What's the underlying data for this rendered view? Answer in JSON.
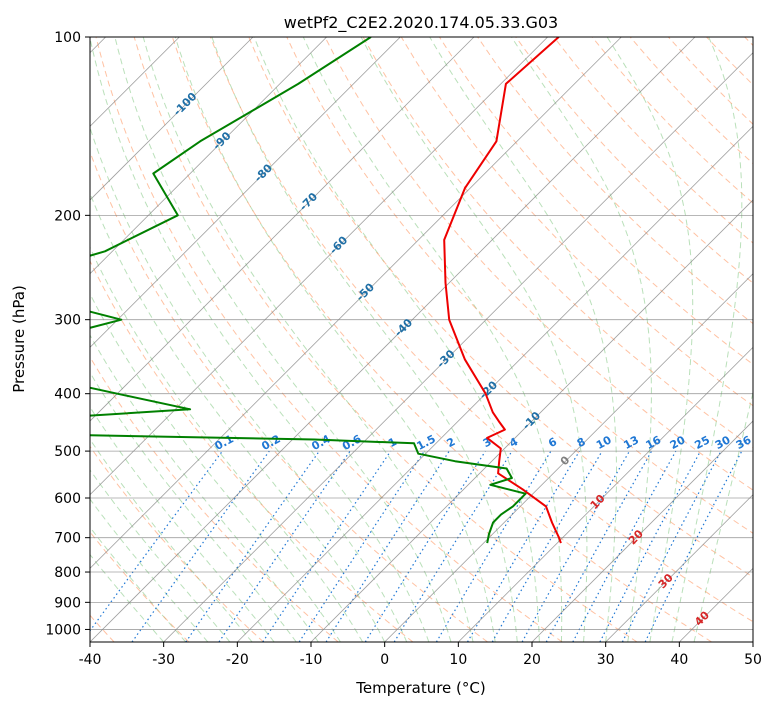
{
  "chart_data": {
    "type": "line",
    "title": "wetPf2_C2E2.2020.174.05.33.G03",
    "xlabel": "Temperature (°C)",
    "ylabel": "Pressure (hPa)",
    "xlim": [
      -40,
      50
    ],
    "ylim": [
      1050,
      100
    ],
    "y_scale": "log",
    "grid": true,
    "x_ticks": [
      -40,
      -30,
      -20,
      -10,
      0,
      10,
      20,
      30,
      40,
      50
    ],
    "y_ticks": [
      100,
      200,
      300,
      400,
      500,
      600,
      700,
      800,
      900,
      1000
    ],
    "series": [
      {
        "role": "temperature",
        "color": "#ee0000",
        "points": [
          [
            -58.5,
            100
          ],
          [
            -59.3,
            120
          ],
          [
            -52.8,
            150
          ],
          [
            -50.7,
            180
          ],
          [
            -46.5,
            220
          ],
          [
            -40.5,
            260
          ],
          [
            -35.0,
            300
          ],
          [
            -27.5,
            350
          ],
          [
            -20.0,
            400
          ],
          [
            -16.5,
            430
          ],
          [
            -14.5,
            445
          ],
          [
            -12.5,
            460
          ],
          [
            -13.8,
            475
          ],
          [
            -10.5,
            495
          ],
          [
            -9.0,
            520
          ],
          [
            -7.5,
            545
          ],
          [
            -2.0,
            580
          ],
          [
            3.5,
            620
          ],
          [
            6.5,
            660
          ],
          [
            9.5,
            700
          ],
          [
            10.5,
            715
          ]
        ]
      },
      {
        "role": "dewpoint",
        "color": "#008000",
        "points": [
          [
            -84.0,
            100
          ],
          [
            -87.5,
            120
          ],
          [
            -93.0,
            150
          ],
          [
            -95.0,
            170
          ],
          [
            -86.0,
            200
          ],
          [
            -91.0,
            230
          ],
          [
            -98.0,
            250
          ],
          [
            -97.5,
            270
          ],
          [
            -79.5,
            300
          ],
          [
            -89.0,
            330
          ],
          [
            -80.0,
            360
          ],
          [
            -80.0,
            380
          ],
          [
            -70.0,
            400
          ],
          [
            -58.0,
            425
          ],
          [
            -76.0,
            440
          ],
          [
            -68.5,
            470
          ],
          [
            -37.0,
            478
          ],
          [
            -23.0,
            485
          ],
          [
            -21.0,
            505
          ],
          [
            -15.0,
            520
          ],
          [
            -7.0,
            535
          ],
          [
            -5.0,
            555
          ],
          [
            -7.0,
            570
          ],
          [
            -1.0,
            590
          ],
          [
            -1.0,
            620
          ],
          [
            -1.5,
            640
          ],
          [
            -1.5,
            660
          ],
          [
            -0.5,
            690
          ],
          [
            0.5,
            715
          ]
        ]
      }
    ],
    "isotherm_labels": [
      "-100",
      "-90",
      "-80",
      "-70",
      "-60",
      "-50",
      "-40",
      "-30",
      "-20",
      "-10",
      "0",
      "10",
      "20",
      "30",
      "40"
    ],
    "mixing_ratio_labels": [
      "0.1",
      "0.2",
      "0.4",
      "0.6",
      "1",
      "1.5",
      "2",
      "3",
      "4",
      "6",
      "8",
      "10",
      "13",
      "16",
      "20",
      "25",
      "30",
      "36"
    ],
    "colors": {
      "isotherm": "#808080",
      "dry_adiabat": "#ff9966",
      "moist_adiabat": "#66bb66",
      "mixing_ratio": "#1f77d4",
      "isotherm_label_cold": "#1f6fa6",
      "isotherm_label_zero": "#808080",
      "isotherm_label_warm": "#d62728"
    }
  }
}
